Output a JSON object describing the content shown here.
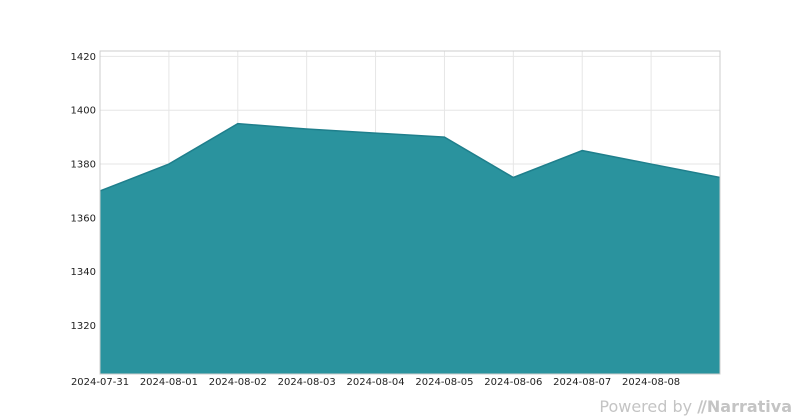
{
  "chart_data": {
    "type": "area",
    "title": "",
    "xlabel": "",
    "ylabel": "",
    "x": [
      "2024-07-31",
      "2024-08-01",
      "2024-08-02",
      "2024-08-03",
      "2024-08-04",
      "2024-08-05",
      "2024-08-06",
      "2024-08-07",
      "2024-08-08",
      "2024-08-09"
    ],
    "series": [
      {
        "values": [
          1370,
          1380,
          1395,
          1393,
          1391.5,
          1390,
          1375,
          1385,
          1380,
          1375
        ]
      }
    ],
    "x_tick_labels": [
      "2024-07-31",
      "2024-08-01",
      "2024-08-02",
      "2024-08-03",
      "2024-08-04",
      "2024-08-05",
      "2024-08-06",
      "2024-08-07",
      "2024-08-08"
    ],
    "y_ticks": [
      1320,
      1340,
      1360,
      1380,
      1400,
      1420
    ],
    "ylim": [
      1302,
      1422
    ],
    "grid": true,
    "legend": "none",
    "fill_color": "#2a939e",
    "line_color": "#1f7f8c"
  },
  "watermark": {
    "prefix": "Powered by",
    "logo_icon": "narrativa-logo-icon",
    "brand": "Narrativa"
  }
}
